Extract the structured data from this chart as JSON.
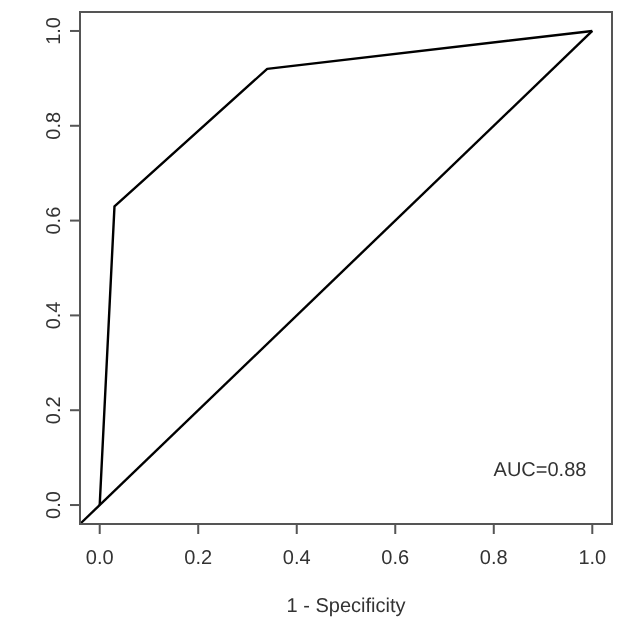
{
  "chart_data": {
    "type": "line",
    "xlabel": "1 - Specificity",
    "xlim": [
      -0.04,
      1.04
    ],
    "ylim": [
      -0.04,
      1.04
    ],
    "xticks": [
      {
        "value": 0,
        "label": "0.0"
      },
      {
        "value": 0.2,
        "label": "0.2"
      },
      {
        "value": 0.4,
        "label": "0.4"
      },
      {
        "value": 0.6,
        "label": "0.6"
      },
      {
        "value": 0.8,
        "label": "0.8"
      },
      {
        "value": 1,
        "label": "1.0"
      }
    ],
    "yticks": [
      {
        "value": 0,
        "label": "0.0"
      },
      {
        "value": 0.2,
        "label": "0.2"
      },
      {
        "value": 0.4,
        "label": "0.4"
      },
      {
        "value": 0.6,
        "label": "0.6"
      },
      {
        "value": 0.8,
        "label": "0.8"
      },
      {
        "value": 1,
        "label": "1.0"
      }
    ],
    "series": [
      {
        "color": "#000000",
        "x": [
          0,
          0.03,
          0.34,
          1
        ],
        "values": [
          0,
          0.63,
          0.92,
          1
        ]
      },
      {
        "color": "#000000",
        "x": [
          -0.04,
          1
        ],
        "values": [
          -0.04,
          1
        ]
      }
    ],
    "annotations": [
      "AUC=0.88"
    ],
    "grid": false,
    "marker": "none",
    "line_style": "solid"
  }
}
